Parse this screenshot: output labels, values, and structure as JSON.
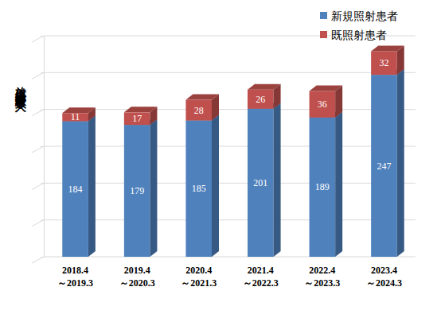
{
  "chart_data": {
    "type": "bar",
    "stacked": true,
    "y_label": "放射線治療患者数（人）",
    "categories": [
      "2018.4\n～2019.3",
      "2019.4\n～2020.3",
      "2020.4\n～2021.3",
      "2021.4\n～2022.3",
      "2022.4\n～2023.3",
      "2023.4\n～2024.3"
    ],
    "series": [
      {
        "name": "新規照射患者",
        "color": "#4f81bd",
        "values": [
          184,
          179,
          185,
          201,
          189,
          247
        ]
      },
      {
        "name": "既照射患者",
        "color": "#c0504d",
        "values": [
          11,
          17,
          28,
          26,
          36,
          32
        ]
      }
    ],
    "ylim": [
      0,
      300
    ],
    "yticks": [
      0,
      50,
      100,
      150,
      200,
      250,
      300
    ],
    "grid": true,
    "tick_labels": "x",
    "data_labels": true,
    "legend": "upper right"
  }
}
